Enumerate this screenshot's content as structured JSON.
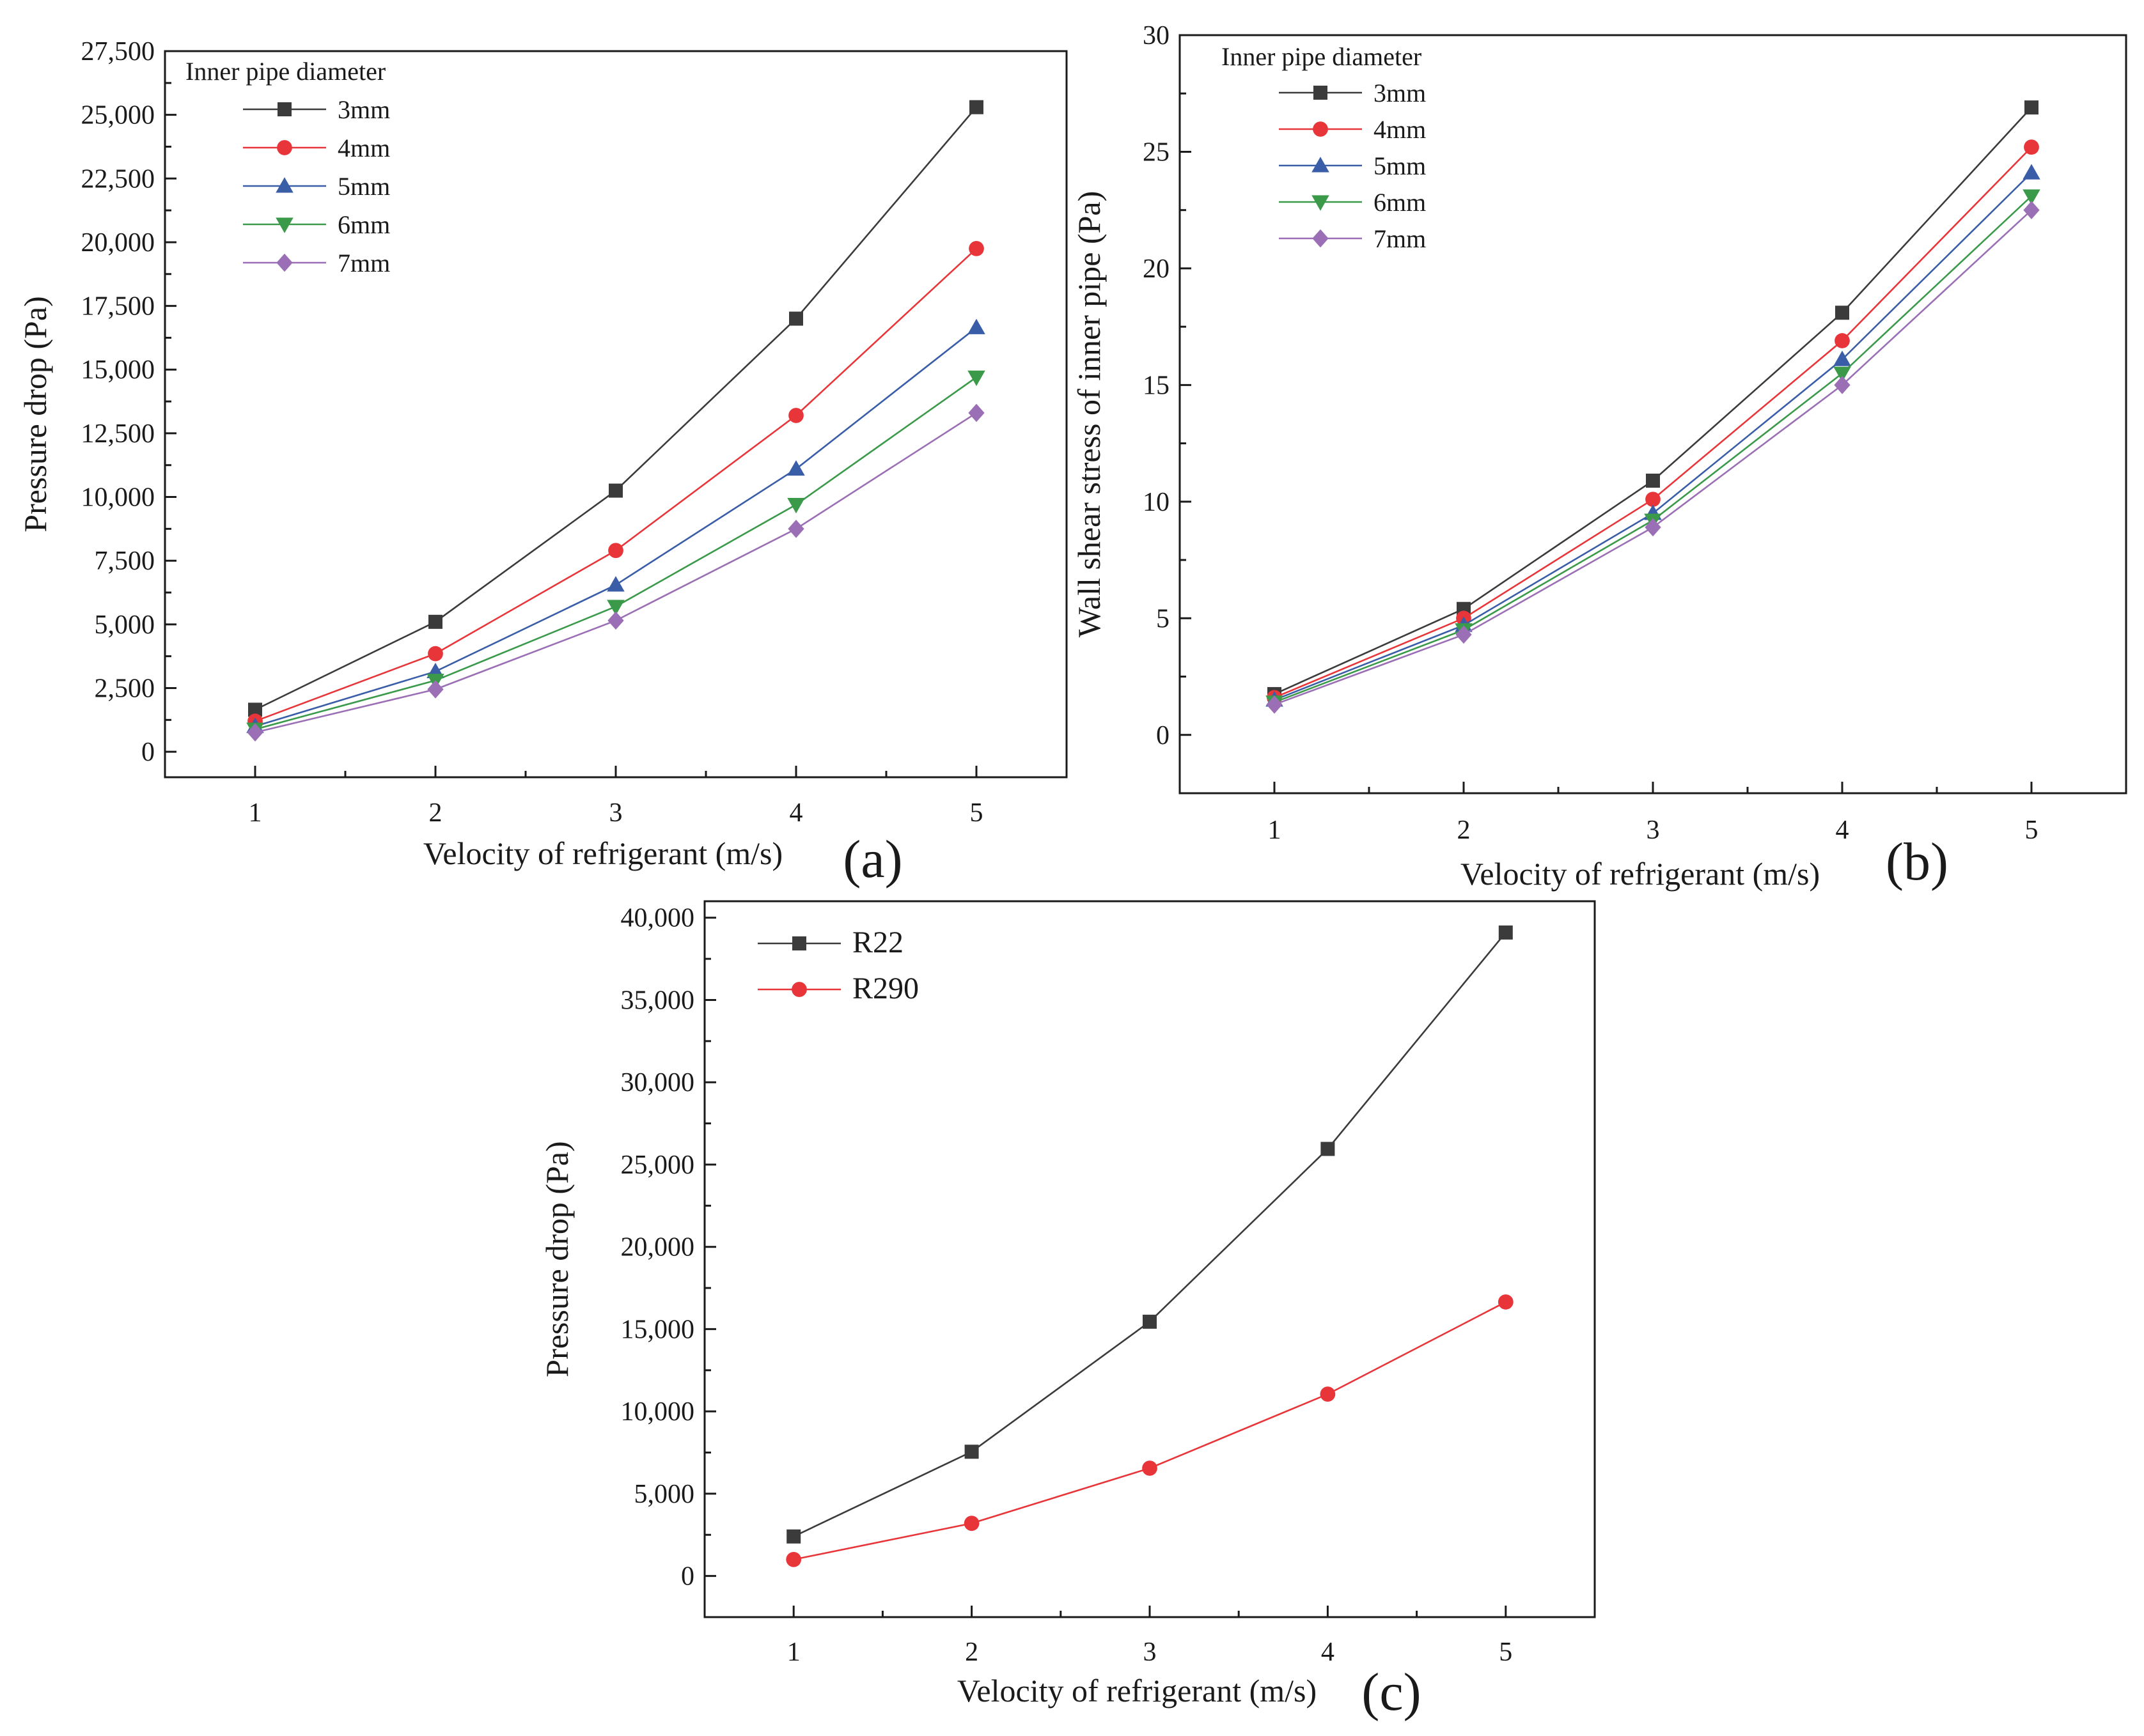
{
  "chart_data": [
    {
      "panel": "(a)",
      "type": "line",
      "xlabel": "Velocity of refrigerant (m/s)",
      "ylabel": "Pressure drop (Pa)",
      "xlim": [
        0.5,
        5.5
      ],
      "ylim": [
        -1000,
        27500
      ],
      "xticks": [
        1,
        2,
        3,
        4,
        5
      ],
      "yticks": [
        0,
        2500,
        5000,
        7500,
        10000,
        12500,
        15000,
        17500,
        20000,
        22500,
        25000,
        27500
      ],
      "ytick_labels": [
        "0",
        "2,500",
        "5,000",
        "7,500",
        "10,000",
        "12,500",
        "15,000",
        "17,500",
        "20,000",
        "22,500",
        "25,000",
        "27,500"
      ],
      "legend_title": "Inner pipe diameter",
      "legend_position": "top-left",
      "x": [
        1,
        2,
        3,
        4,
        5
      ],
      "series": [
        {
          "name": "3mm",
          "color": "#3b3b3b",
          "marker": "square",
          "values": [
            1650,
            5100,
            10250,
            17000,
            25300
          ]
        },
        {
          "name": "4mm",
          "color": "#e8353a",
          "marker": "circle",
          "values": [
            1200,
            3850,
            7900,
            13200,
            19750
          ]
        },
        {
          "name": "5mm",
          "color": "#3a5da8",
          "marker": "triangle-up",
          "values": [
            1000,
            3150,
            6550,
            11100,
            16650
          ]
        },
        {
          "name": "6mm",
          "color": "#3a9a4a",
          "marker": "triangle-down",
          "values": [
            880,
            2800,
            5700,
            9700,
            14700
          ]
        },
        {
          "name": "7mm",
          "color": "#9b6fb5",
          "marker": "diamond",
          "values": [
            760,
            2450,
            5150,
            8750,
            13300
          ]
        }
      ]
    },
    {
      "panel": "(b)",
      "type": "line",
      "xlabel": "Velocity of refrigerant (m/s)",
      "ylabel": "Wall shear stress of inner pipe (Pa)",
      "xlim": [
        0.5,
        5.5
      ],
      "ylim": [
        -2.5,
        30
      ],
      "xticks": [
        1,
        2,
        3,
        4,
        5
      ],
      "yticks": [
        0,
        5,
        10,
        15,
        20,
        25,
        30
      ],
      "ytick_labels": [
        "0",
        "5",
        "10",
        "15",
        "20",
        "25",
        "30"
      ],
      "legend_title": "Inner pipe diameter",
      "legend_position": "top-left",
      "x": [
        1,
        2,
        3,
        4,
        5
      ],
      "series": [
        {
          "name": "3mm",
          "color": "#3b3b3b",
          "marker": "square",
          "values": [
            1.75,
            5.4,
            10.9,
            18.1,
            26.9
          ]
        },
        {
          "name": "4mm",
          "color": "#e8353a",
          "marker": "circle",
          "values": [
            1.6,
            5.0,
            10.1,
            16.9,
            25.2
          ]
        },
        {
          "name": "5mm",
          "color": "#3a5da8",
          "marker": "triangle-up",
          "values": [
            1.5,
            4.7,
            9.5,
            16.1,
            24.1
          ]
        },
        {
          "name": "6mm",
          "color": "#3a9a4a",
          "marker": "triangle-down",
          "values": [
            1.4,
            4.5,
            9.2,
            15.5,
            23.1
          ]
        },
        {
          "name": "7mm",
          "color": "#9b6fb5",
          "marker": "diamond",
          "values": [
            1.3,
            4.3,
            8.9,
            15.0,
            22.5
          ]
        }
      ]
    },
    {
      "panel": "(c)",
      "type": "line",
      "xlabel": "Velocity of refrigerant (m/s)",
      "ylabel": "Pressure drop (Pa)",
      "xlim": [
        0.5,
        5.5
      ],
      "ylim": [
        -2500,
        41000
      ],
      "xticks": [
        1,
        2,
        3,
        4,
        5
      ],
      "yticks": [
        0,
        5000,
        10000,
        15000,
        20000,
        25000,
        30000,
        35000,
        40000
      ],
      "ytick_labels": [
        "0",
        "5,000",
        "10,000",
        "15,000",
        "20,000",
        "25,000",
        "30,000",
        "35,000",
        "40,000"
      ],
      "legend_title": "",
      "legend_position": "top-left",
      "x": [
        1,
        2,
        3,
        4,
        5
      ],
      "series": [
        {
          "name": "R22",
          "color": "#3b3b3b",
          "marker": "square",
          "values": [
            2400,
            7550,
            15450,
            25950,
            39100
          ]
        },
        {
          "name": "R290",
          "color": "#e8353a",
          "marker": "circle",
          "values": [
            1000,
            3200,
            6550,
            11050,
            16650
          ]
        }
      ]
    }
  ]
}
